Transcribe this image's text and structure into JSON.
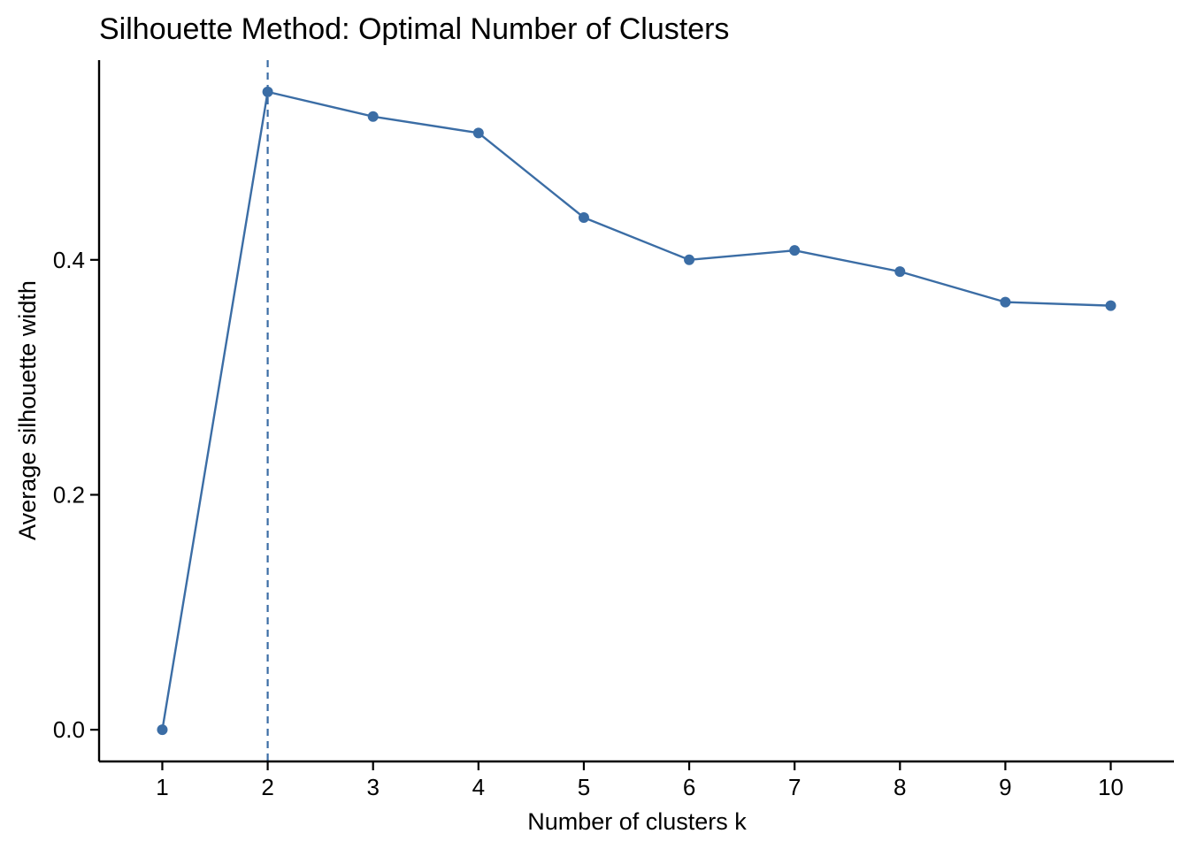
{
  "chart_data": {
    "type": "line",
    "title": "Silhouette Method: Optimal Number of Clusters",
    "xlabel": "Number of clusters k",
    "ylabel": "Average silhouette width",
    "x": [
      "1",
      "2",
      "3",
      "4",
      "5",
      "6",
      "7",
      "8",
      "9",
      "10"
    ],
    "series": [
      {
        "values": [
          0.0,
          0.543,
          0.522,
          0.508,
          0.436,
          0.4,
          0.408,
          0.39,
          0.364,
          0.361
        ]
      }
    ],
    "yticks": [
      {
        "value": 0.0,
        "label": "0.0"
      },
      {
        "value": 0.2,
        "label": "0.2"
      },
      {
        "value": 0.4,
        "label": "0.4"
      }
    ],
    "ylim": [
      -0.027,
      0.57
    ],
    "xlim": [
      0.4,
      10.6
    ],
    "optimal_k": 2,
    "grid": false,
    "colors": {
      "line": "#3B6DA5",
      "axis": "#000000"
    }
  }
}
